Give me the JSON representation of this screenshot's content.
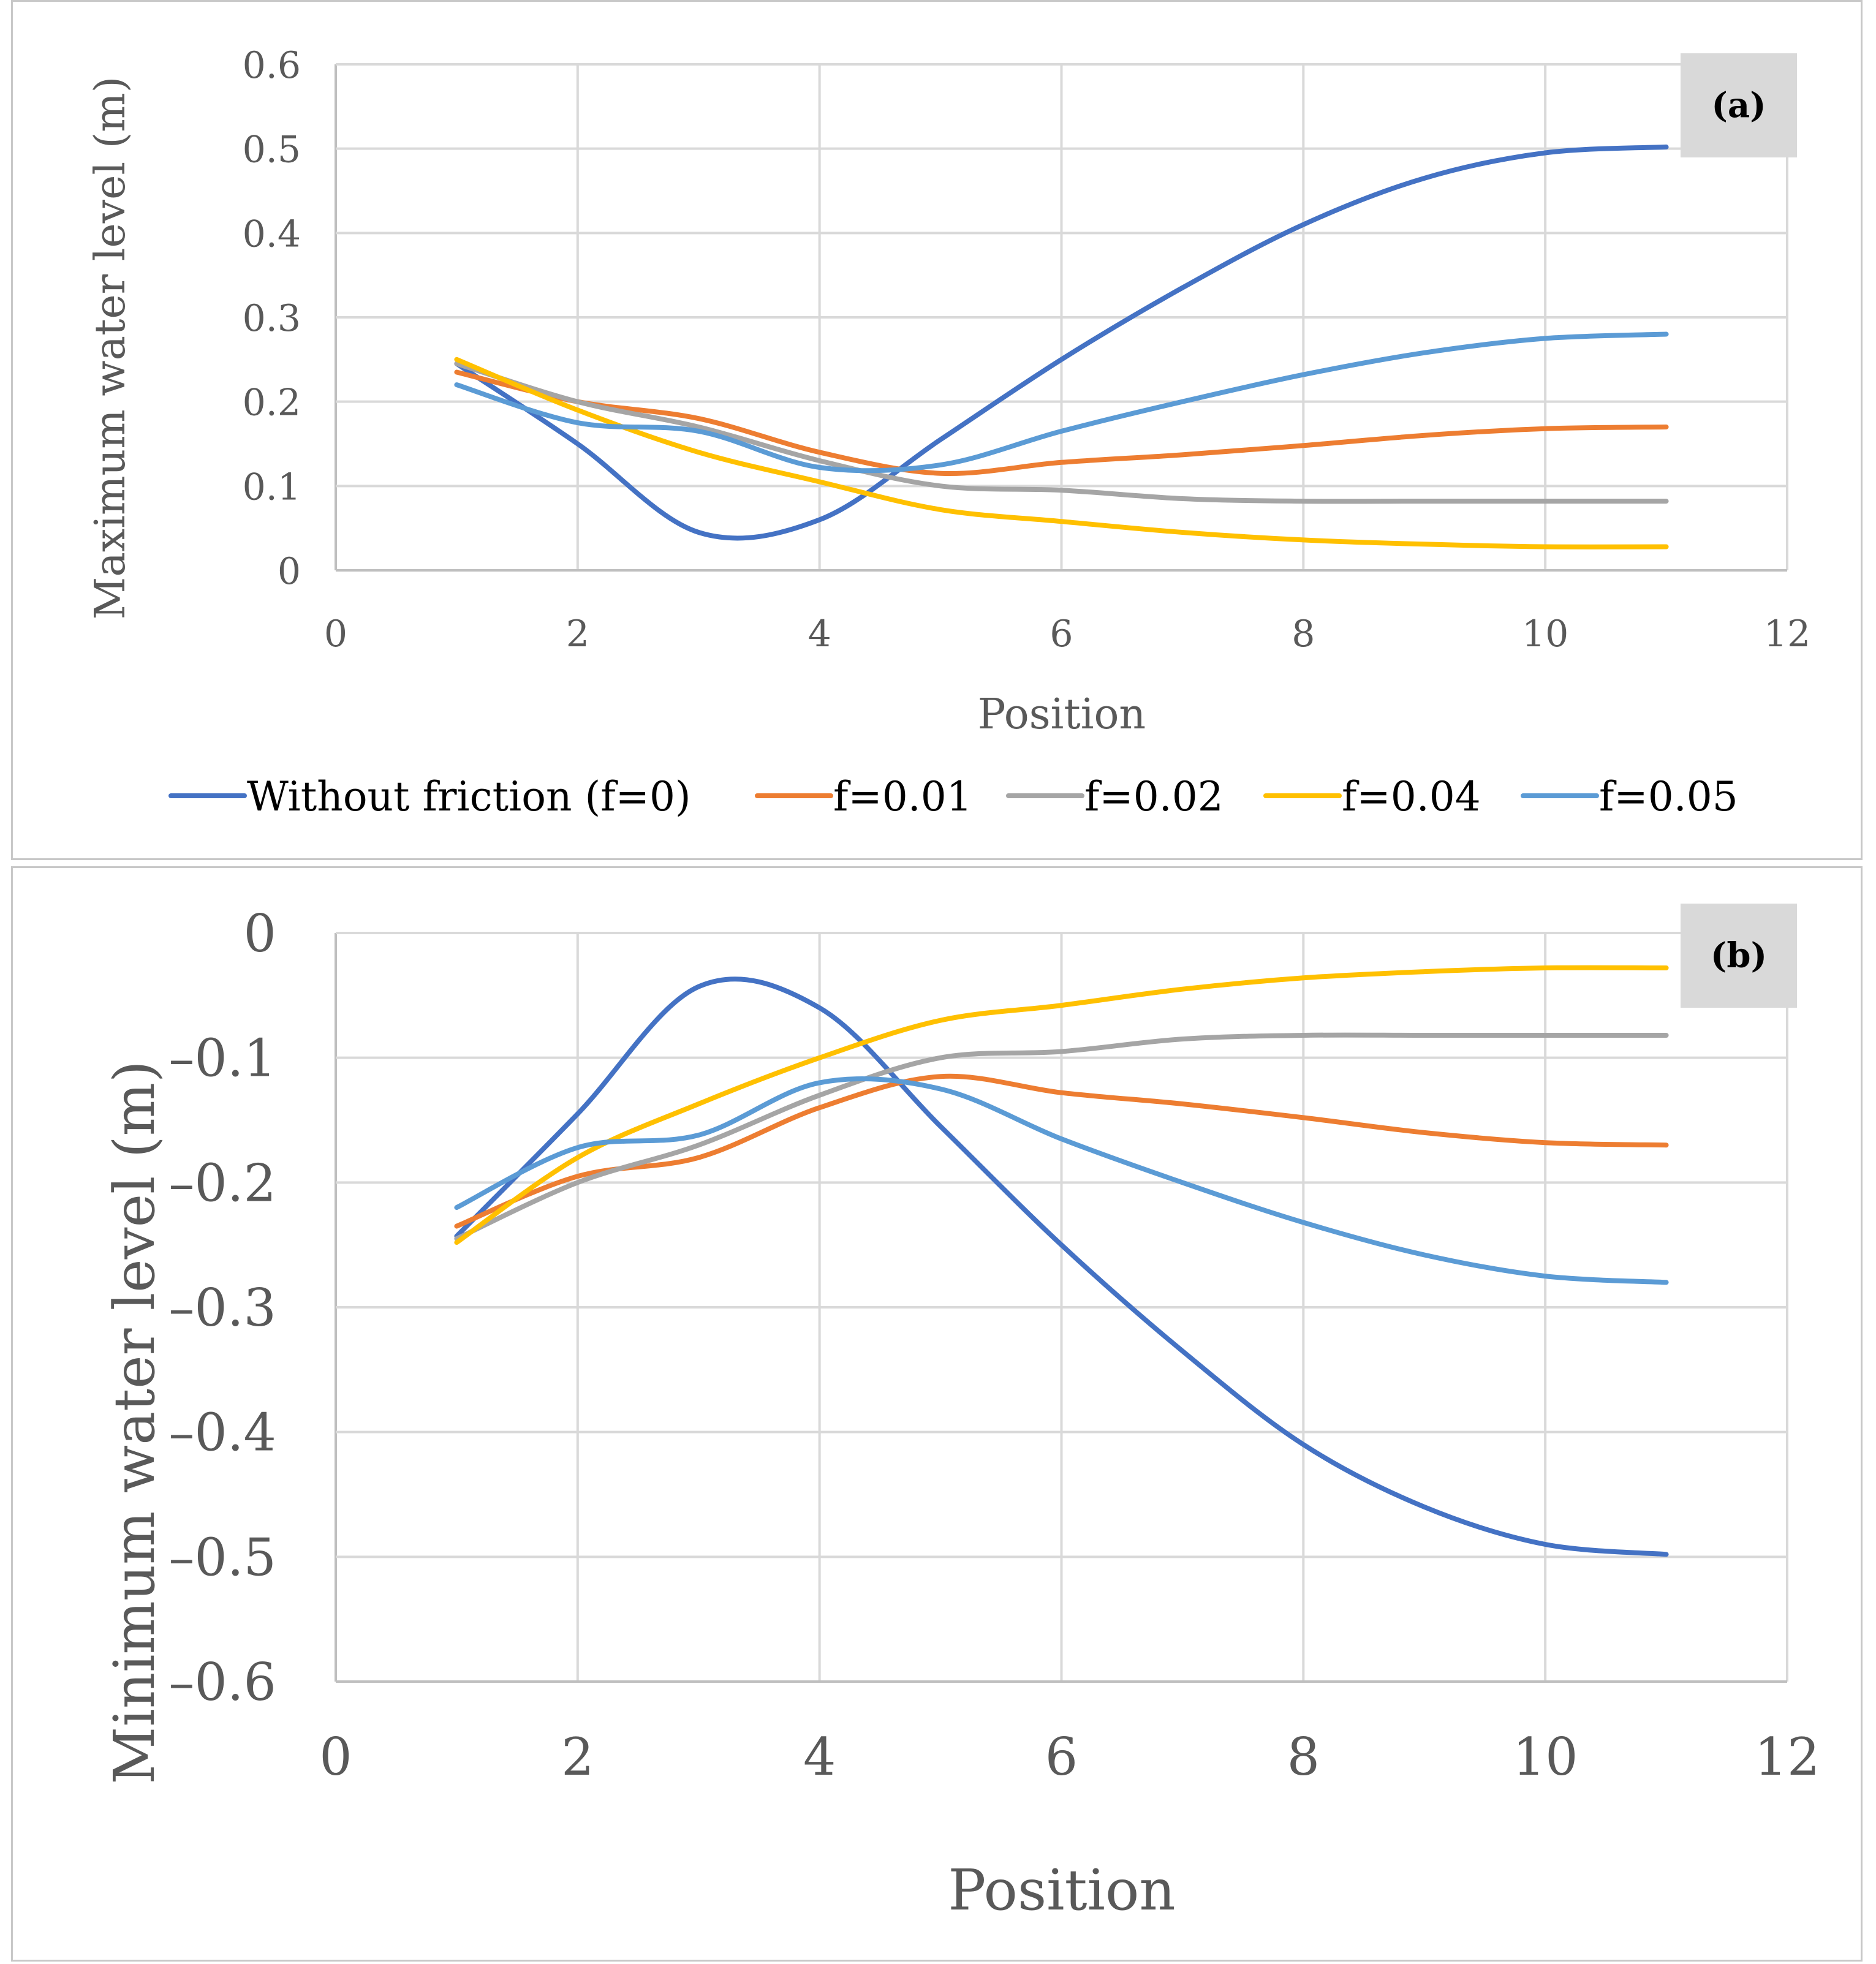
{
  "chart_data": [
    {
      "type": "line",
      "panel_tag": "(a)",
      "xlabel": "Position",
      "ylabel": "Maximum water level (m)",
      "xlim": [
        0,
        12
      ],
      "ylim": [
        0,
        0.6
      ],
      "xticks": [
        0,
        2,
        4,
        6,
        8,
        10,
        12
      ],
      "yticks": [
        0,
        0.1,
        0.2,
        0.3,
        0.4,
        0.5,
        0.6
      ],
      "ytick_labels": [
        "0",
        "0.1",
        "0.2",
        "0.3",
        "0.4",
        "0.5",
        "0.6"
      ],
      "xtick_labels": [
        "0",
        "2",
        "4",
        "6",
        "8",
        "10",
        "12"
      ],
      "grid": true,
      "legend_position": "bottom",
      "x": [
        1,
        2,
        3,
        4,
        5,
        6,
        7,
        8,
        9,
        10,
        11
      ],
      "series": [
        {
          "name": "Without friction (f=0)",
          "color": "#4472c4",
          "values": [
            0.245,
            0.15,
            0.045,
            0.06,
            0.155,
            0.25,
            0.335,
            0.41,
            0.465,
            0.495,
            0.502
          ]
        },
        {
          "name": "f=0.01",
          "color": "#ed7d31",
          "values": [
            0.235,
            0.2,
            0.18,
            0.14,
            0.115,
            0.128,
            0.137,
            0.148,
            0.16,
            0.168,
            0.17
          ]
        },
        {
          "name": "f=0.02",
          "color": "#a5a5a5",
          "values": [
            0.245,
            0.2,
            0.17,
            0.13,
            0.1,
            0.095,
            0.085,
            0.082,
            0.082,
            0.082,
            0.082
          ]
        },
        {
          "name": "f=0.04",
          "color": "#ffc000",
          "values": [
            0.25,
            0.19,
            0.14,
            0.105,
            0.072,
            0.058,
            0.045,
            0.036,
            0.031,
            0.028,
            0.028
          ]
        },
        {
          "name": "f=0.05",
          "color": "#5b9bd5",
          "values": [
            0.22,
            0.175,
            0.165,
            0.122,
            0.125,
            0.165,
            0.2,
            0.232,
            0.258,
            0.275,
            0.28
          ]
        }
      ]
    },
    {
      "type": "line",
      "panel_tag": "(b)",
      "xlabel": "Position",
      "ylabel": "Minimum water level (m)",
      "xlim": [
        0,
        12
      ],
      "ylim": [
        -0.6,
        0
      ],
      "xticks": [
        0,
        2,
        4,
        6,
        8,
        10,
        12
      ],
      "yticks": [
        0,
        -0.1,
        -0.2,
        -0.3,
        -0.4,
        -0.5,
        -0.6
      ],
      "ytick_labels": [
        "0",
        "–0.1",
        "–0.2",
        "–0.3",
        "–0.4",
        "–0.5",
        "–0.6"
      ],
      "xtick_labels": [
        "0",
        "2",
        "4",
        "6",
        "8",
        "10",
        "12"
      ],
      "grid": true,
      "x": [
        1,
        2,
        3,
        4,
        5,
        6,
        7,
        8,
        9,
        10,
        11
      ],
      "series": [
        {
          "name": "Without friction (f=0)",
          "color": "#4472c4",
          "values": [
            -0.243,
            -0.145,
            -0.043,
            -0.06,
            -0.155,
            -0.25,
            -0.335,
            -0.41,
            -0.46,
            -0.49,
            -0.498
          ]
        },
        {
          "name": "f=0.01",
          "color": "#ed7d31",
          "values": [
            -0.235,
            -0.195,
            -0.18,
            -0.14,
            -0.115,
            -0.128,
            -0.137,
            -0.148,
            -0.16,
            -0.168,
            -0.17
          ]
        },
        {
          "name": "f=0.02",
          "color": "#a5a5a5",
          "values": [
            -0.245,
            -0.2,
            -0.17,
            -0.13,
            -0.1,
            -0.095,
            -0.085,
            -0.082,
            -0.082,
            -0.082,
            -0.082
          ]
        },
        {
          "name": "f=0.04",
          "color": "#ffc000",
          "values": [
            -0.248,
            -0.18,
            -0.137,
            -0.1,
            -0.07,
            -0.058,
            -0.045,
            -0.036,
            -0.031,
            -0.028,
            -0.028
          ]
        },
        {
          "name": "f=0.05",
          "color": "#5b9bd5",
          "values": [
            -0.22,
            -0.172,
            -0.162,
            -0.12,
            -0.125,
            -0.165,
            -0.2,
            -0.232,
            -0.258,
            -0.275,
            -0.28
          ]
        }
      ]
    }
  ]
}
